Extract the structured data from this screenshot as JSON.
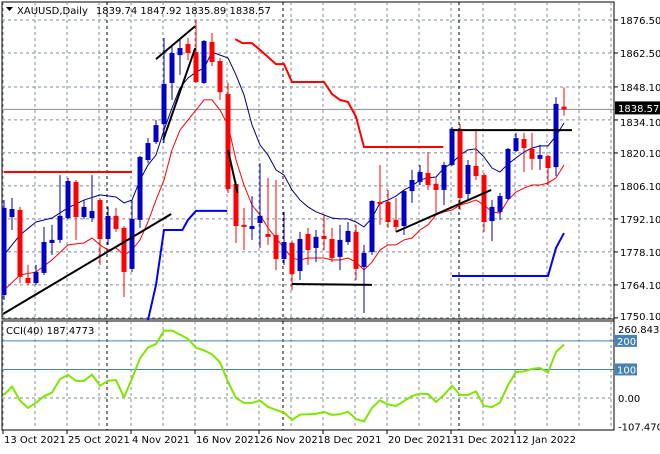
{
  "header": {
    "menu_icon": "triangle-down-icon",
    "symbol": "XAUUSD,Daily",
    "ohlc": "1839.74 1847.92 1835.89 1838.57"
  },
  "colors": {
    "bull": "#0000c8",
    "bear": "#ff0000",
    "ma_fast": "#000080",
    "ma_slow": "#ff0000",
    "band_upper": "#ff0000",
    "band_lower": "#0000ff",
    "trendline": "#000000",
    "cci": "#7fe600",
    "cci_level": "#4682b4",
    "grid": "#7f8c99"
  },
  "chart_data": [
    {
      "type": "candlestick",
      "title": "XAUUSD,Daily",
      "current_price": 1838.57,
      "current_price_label": "1838.57",
      "ylim": [
        1750.1,
        1876.5
      ],
      "y_tick_labels": [
        "1876.50",
        "1862.50",
        "1848.10",
        "1834.10",
        "1820.10",
        "1806.10",
        "1792.10",
        "1778.10",
        "1764.10",
        "1750.10"
      ],
      "x_tick_labels": [
        {
          "label": "13 Oct 2021",
          "bar": 0
        },
        {
          "label": "25 Oct 2021",
          "bar": 8
        },
        {
          "label": "4 Nov 2021",
          "bar": 16
        },
        {
          "label": "16 Nov 2021",
          "bar": 24
        },
        {
          "label": "26 Nov 2021",
          "bar": 32
        },
        {
          "label": "8 Dec 2021",
          "bar": 40
        },
        {
          "label": "20 Dec 2021",
          "bar": 48
        },
        {
          "label": "31 Dec 2021",
          "bar": 56
        },
        {
          "label": "12 Jan 2022",
          "bar": 64
        }
      ],
      "period_separators_before_bar": [
        13,
        35,
        57
      ],
      "ohlc": [
        [
          1759.8,
          1800.1,
          1757.7,
          1796.8
        ],
        [
          1792.9,
          1801.0,
          1787.4,
          1796.3
        ],
        [
          1795.9,
          1797.2,
          1764.9,
          1767.5
        ],
        [
          1767.1,
          1772.6,
          1764.1,
          1764.9
        ],
        [
          1764.9,
          1772.6,
          1764.1,
          1769.6
        ],
        [
          1769.2,
          1788.7,
          1768.3,
          1782.3
        ],
        [
          1781.9,
          1789.6,
          1776.8,
          1783.2
        ],
        [
          1783.2,
          1810.7,
          1781.9,
          1793.4
        ],
        [
          1792.5,
          1809.5,
          1792.0,
          1808.2
        ],
        [
          1807.8,
          1808.6,
          1783.2,
          1792.9
        ],
        [
          1792.9,
          1800.1,
          1792.0,
          1797.2
        ],
        [
          1792.5,
          1810.7,
          1790.8,
          1795.5
        ],
        [
          1800.1,
          1801.0,
          1772.6,
          1783.6
        ],
        [
          1783.6,
          1797.2,
          1781.1,
          1793.4
        ],
        [
          1793.4,
          1796.8,
          1786.6,
          1787.8
        ],
        [
          1788.3,
          1789.1,
          1759.0,
          1769.6
        ],
        [
          1770.9,
          1800.1,
          1769.6,
          1792.1
        ],
        [
          1791.7,
          1818.8,
          1788.3,
          1818.4
        ],
        [
          1817.1,
          1826.4,
          1815.8,
          1824.3
        ],
        [
          1824.7,
          1834.1,
          1823.9,
          1831.9
        ],
        [
          1832.4,
          1868.9,
          1824.3,
          1849.4
        ],
        [
          1849.8,
          1865.9,
          1842.6,
          1862.5
        ],
        [
          1861.6,
          1868.0,
          1853.2,
          1864.6
        ],
        [
          1866.3,
          1868.9,
          1859.5,
          1862.5
        ],
        [
          1862.9,
          1876.5,
          1849.8,
          1850.2
        ],
        [
          1849.8,
          1868.0,
          1849.4,
          1867.6
        ],
        [
          1867.2,
          1871.0,
          1857.0,
          1858.7
        ],
        [
          1859.1,
          1860.4,
          1842.6,
          1845.9
        ],
        [
          1845.1,
          1849.8,
          1803.1,
          1804.8
        ],
        [
          1806.9,
          1808.0,
          1781.9,
          1789.1
        ],
        [
          1789.6,
          1796.8,
          1778.9,
          1788.7
        ],
        [
          1787.8,
          1801.8,
          1783.2,
          1789.1
        ],
        [
          1790.4,
          1815.8,
          1779.8,
          1793.4
        ],
        [
          1785.7,
          1809.5,
          1781.1,
          1784.5
        ],
        [
          1785.3,
          1808.6,
          1770.4,
          1775.1
        ],
        [
          1775.1,
          1795.1,
          1772.6,
          1782.3
        ],
        [
          1781.9,
          1783.0,
          1761.9,
          1768.7
        ],
        [
          1770.0,
          1786.6,
          1766.2,
          1783.6
        ],
        [
          1785.7,
          1788.3,
          1772.6,
          1778.9
        ],
        [
          1779.8,
          1787.4,
          1773.8,
          1784.5
        ],
        [
          1784.9,
          1794.2,
          1778.9,
          1783.6
        ],
        [
          1783.6,
          1788.3,
          1773.8,
          1775.5
        ],
        [
          1776.0,
          1789.6,
          1770.4,
          1783.2
        ],
        [
          1782.3,
          1790.8,
          1781.1,
          1787.0
        ],
        [
          1786.6,
          1789.6,
          1766.2,
          1770.9
        ],
        [
          1771.7,
          1781.1,
          1752.2,
          1777.7
        ],
        [
          1778.1,
          1800.1,
          1776.8,
          1799.7
        ],
        [
          1799.3,
          1815.0,
          1789.6,
          1798.4
        ],
        [
          1799.3,
          1804.4,
          1788.3,
          1790.8
        ],
        [
          1791.7,
          1801.0,
          1786.6,
          1788.7
        ],
        [
          1789.1,
          1804.4,
          1785.3,
          1803.9
        ],
        [
          1803.9,
          1812.9,
          1798.9,
          1808.6
        ],
        [
          1807.8,
          1815.0,
          1806.5,
          1812.0
        ],
        [
          1811.6,
          1820.5,
          1804.4,
          1806.5
        ],
        [
          1807.0,
          1809.5,
          1793.8,
          1804.4
        ],
        [
          1804.4,
          1816.3,
          1798.0,
          1815.0
        ],
        [
          1815.0,
          1831.1,
          1814.6,
          1830.3
        ],
        [
          1830.3,
          1832.4,
          1795.9,
          1801.0
        ],
        [
          1802.7,
          1817.1,
          1800.1,
          1815.0
        ],
        [
          1814.6,
          1830.3,
          1808.6,
          1810.3
        ],
        [
          1810.7,
          1811.6,
          1786.6,
          1790.8
        ],
        [
          1791.2,
          1800.1,
          1782.7,
          1797.2
        ],
        [
          1795.1,
          1803.1,
          1791.7,
          1801.8
        ],
        [
          1800.6,
          1822.2,
          1800.1,
          1821.8
        ],
        [
          1820.9,
          1828.6,
          1820.5,
          1826.4
        ],
        [
          1826.0,
          1828.6,
          1812.0,
          1822.2
        ],
        [
          1821.8,
          1828.6,
          1812.9,
          1817.6
        ],
        [
          1817.6,
          1823.5,
          1812.9,
          1819.2
        ],
        [
          1818.8,
          1819.2,
          1806.5,
          1813.7
        ],
        [
          1814.1,
          1843.8,
          1810.3,
          1840.9
        ],
        [
          1839.74,
          1847.92,
          1835.89,
          1838.57
        ]
      ],
      "ma_fast": [
        [
          0,
          1776.8
        ],
        [
          2,
          1785.3
        ],
        [
          4,
          1790.8
        ],
        [
          6,
          1792.5
        ],
        [
          8,
          1796.8
        ],
        [
          10,
          1800.1
        ],
        [
          12,
          1802.3
        ],
        [
          14,
          1801.4
        ],
        [
          15,
          1798.9
        ],
        [
          16,
          1800.1
        ],
        [
          17,
          1808.6
        ],
        [
          18,
          1815.0
        ],
        [
          19,
          1819.2
        ],
        [
          20,
          1829.8
        ],
        [
          21,
          1839.2
        ],
        [
          22,
          1847.7
        ],
        [
          23,
          1851.9
        ],
        [
          24,
          1854.4
        ],
        [
          25,
          1856.1
        ],
        [
          26,
          1862.9
        ],
        [
          27,
          1861.6
        ],
        [
          28,
          1860.4
        ],
        [
          29,
          1853.2
        ],
        [
          30,
          1844.7
        ],
        [
          31,
          1832.0
        ],
        [
          32,
          1823.5
        ],
        [
          33,
          1819.2
        ],
        [
          34,
          1812.9
        ],
        [
          35,
          1810.7
        ],
        [
          36,
          1804.4
        ],
        [
          37,
          1800.1
        ],
        [
          38,
          1797.2
        ],
        [
          39,
          1795.1
        ],
        [
          40,
          1793.8
        ],
        [
          41,
          1792.5
        ],
        [
          42,
          1792.1
        ],
        [
          43,
          1792.1
        ],
        [
          44,
          1790.8
        ],
        [
          45,
          1788.7
        ],
        [
          46,
          1792.5
        ],
        [
          47,
          1798.9
        ],
        [
          48,
          1800.1
        ],
        [
          49,
          1801.8
        ],
        [
          50,
          1804.4
        ],
        [
          51,
          1806.1
        ],
        [
          52,
          1808.6
        ],
        [
          53,
          1809.5
        ],
        [
          54,
          1809.9
        ],
        [
          55,
          1813.7
        ],
        [
          56,
          1815.8
        ],
        [
          57,
          1819.2
        ],
        [
          58,
          1821.4
        ],
        [
          59,
          1821.8
        ],
        [
          60,
          1818.4
        ],
        [
          61,
          1813.7
        ],
        [
          62,
          1812.0
        ],
        [
          63,
          1815.4
        ],
        [
          64,
          1818.0
        ],
        [
          65,
          1820.5
        ],
        [
          66,
          1822.2
        ],
        [
          67,
          1823.1
        ],
        [
          68,
          1823.1
        ],
        [
          69,
          1827.3
        ],
        [
          70,
          1832.8
        ]
      ],
      "ma_slow": [
        [
          0,
          1761.9
        ],
        [
          2,
          1768.3
        ],
        [
          4,
          1769.6
        ],
        [
          6,
          1774.7
        ],
        [
          8,
          1781.1
        ],
        [
          10,
          1781.9
        ],
        [
          11,
          1784.0
        ],
        [
          12,
          1781.1
        ],
        [
          13,
          1778.9
        ],
        [
          14,
          1779.8
        ],
        [
          15,
          1776.8
        ],
        [
          16,
          1778.9
        ],
        [
          17,
          1783.2
        ],
        [
          18,
          1790.8
        ],
        [
          19,
          1800.1
        ],
        [
          20,
          1808.6
        ],
        [
          21,
          1821.4
        ],
        [
          22,
          1829.8
        ],
        [
          23,
          1834.1
        ],
        [
          24,
          1838.3
        ],
        [
          25,
          1842.6
        ],
        [
          26,
          1842.6
        ],
        [
          27,
          1838.3
        ],
        [
          28,
          1831.9
        ],
        [
          29,
          1817.1
        ],
        [
          30,
          1806.5
        ],
        [
          31,
          1798.0
        ],
        [
          32,
          1793.8
        ],
        [
          33,
          1788.3
        ],
        [
          34,
          1784.0
        ],
        [
          35,
          1779.8
        ],
        [
          36,
          1775.5
        ],
        [
          37,
          1774.7
        ],
        [
          38,
          1775.5
        ],
        [
          40,
          1775.5
        ],
        [
          41,
          1774.7
        ],
        [
          42,
          1774.7
        ],
        [
          43,
          1775.5
        ],
        [
          44,
          1773.8
        ],
        [
          45,
          1770.4
        ],
        [
          46,
          1773.8
        ],
        [
          47,
          1778.9
        ],
        [
          48,
          1781.1
        ],
        [
          49,
          1781.1
        ],
        [
          50,
          1783.2
        ],
        [
          51,
          1784.0
        ],
        [
          52,
          1787.4
        ],
        [
          53,
          1789.6
        ],
        [
          54,
          1793.8
        ],
        [
          55,
          1795.1
        ],
        [
          56,
          1795.9
        ],
        [
          57,
          1798.0
        ],
        [
          58,
          1798.9
        ],
        [
          59,
          1800.1
        ],
        [
          60,
          1798.0
        ],
        [
          61,
          1795.1
        ],
        [
          62,
          1794.6
        ],
        [
          63,
          1800.1
        ],
        [
          64,
          1803.5
        ],
        [
          65,
          1805.2
        ],
        [
          66,
          1806.5
        ],
        [
          67,
          1806.5
        ],
        [
          68,
          1807.3
        ],
        [
          69,
          1809.5
        ],
        [
          70,
          1815.0
        ]
      ],
      "band_upper": [
        [
          [
            0,
            1812.0
          ],
          [
            16,
            1812.0
          ]
        ],
        [
          [
            28.9,
            1868.4
          ],
          [
            29.8,
            1866.7
          ],
          [
            31,
            1866.7
          ],
          [
            32,
            1863.8
          ],
          [
            33,
            1860.8
          ],
          [
            34,
            1857.8
          ],
          [
            35,
            1857.8
          ],
          [
            36,
            1850.2
          ],
          [
            40,
            1850.2
          ],
          [
            41,
            1845.1
          ],
          [
            42,
            1842.6
          ],
          [
            43,
            1841.7
          ],
          [
            44,
            1835.4
          ],
          [
            45,
            1822.6
          ],
          [
            54.9,
            1822.6
          ]
        ]
      ],
      "band_lower": [
        [
          [
            18,
            1749.2
          ],
          [
            19,
            1764.1
          ],
          [
            20,
            1787.4
          ],
          [
            22.3,
            1787.4
          ],
          [
            23,
            1791.7
          ],
          [
            24,
            1795.5
          ],
          [
            27.9,
            1795.5
          ]
        ],
        [
          [
            56,
            1767.9
          ],
          [
            68,
            1767.9
          ],
          [
            69,
            1779.8
          ],
          [
            70,
            1786.1
          ]
        ]
      ],
      "trendlines": [
        [
          [
            -0.1,
            1751.8
          ],
          [
            20.9,
            1794.2
          ]
        ],
        [
          [
            19.0,
            1859.9
          ],
          [
            23.9,
            1873.9
          ]
        ],
        [
          [
            19.9,
            1825.6
          ],
          [
            23.9,
            1864.6
          ]
        ],
        [
          [
            28.0,
            1821.4
          ],
          [
            29.2,
            1803.1
          ]
        ],
        [
          [
            36.0,
            1764.5
          ],
          [
            46.0,
            1764.1
          ]
        ],
        [
          [
            49.0,
            1786.6
          ],
          [
            60.9,
            1804.4
          ]
        ],
        [
          [
            56.0,
            1829.8
          ],
          [
            71.0,
            1829.8
          ]
        ]
      ]
    },
    {
      "type": "line",
      "title": "CCI(40)",
      "value_label": "CCI(40) 187.4773",
      "ylim": [
        -107.4708,
        260.8431
      ],
      "max_label": "260.8431",
      "min_label": "-107.4708",
      "levels": [
        {
          "value": 200,
          "label": "200"
        },
        {
          "value": 100,
          "label": "100"
        }
      ],
      "zero_label": "0.00",
      "values": [
        11,
        40,
        -9,
        -35,
        -17,
        6,
        19,
        66,
        81,
        60,
        60,
        82,
        43,
        60,
        63,
        2,
        68,
        139,
        177,
        189,
        236,
        236,
        222,
        207,
        176,
        167,
        153,
        125,
        57,
        0,
        -17,
        -17,
        -9,
        -31,
        -42,
        -51,
        -77,
        -58,
        -57,
        -55,
        -49,
        -59,
        -57,
        -48,
        -74,
        -82,
        -34,
        -8,
        -23,
        -28,
        -11,
        7,
        15,
        14,
        -14,
        11,
        43,
        11,
        11,
        23,
        -28,
        -32,
        -16,
        45,
        91,
        93,
        102,
        105,
        89,
        161,
        187.4773
      ]
    }
  ]
}
